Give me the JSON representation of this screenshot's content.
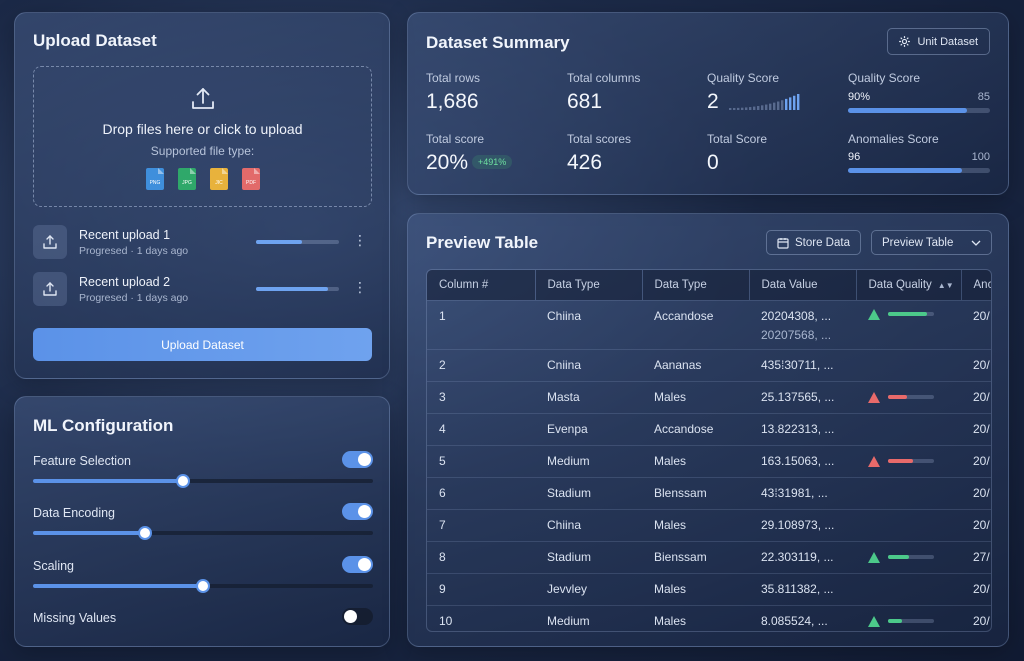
{
  "upload": {
    "title": "Upload Dataset",
    "drop_text": "Drop files here or click to upload",
    "supported_text": "Supported file type:",
    "file_types": [
      {
        "label": "PNG",
        "color": "#3f8fdc"
      },
      {
        "label": "JPG",
        "color": "#2fa86a"
      },
      {
        "label": "JIC",
        "color": "#e8b23c"
      },
      {
        "label": "PDF",
        "color": "#e26a6a"
      }
    ],
    "recent": [
      {
        "title": "Recent upload 1",
        "subtitle": "Progresed · 1 days ago",
        "progress": 0.55
      },
      {
        "title": "Recent upload 2",
        "subtitle": "Progresed · 1 days ago",
        "progress": 0.87
      }
    ],
    "button_label": "Upload Dataset"
  },
  "ml": {
    "title": "ML Configuration",
    "items": [
      {
        "label": "Feature Selection",
        "enabled": true,
        "value": 0.44
      },
      {
        "label": "Data Encoding",
        "enabled": true,
        "value": 0.33
      },
      {
        "label": "Scaling",
        "enabled": true,
        "value": 0.5
      },
      {
        "label": "Missing Values",
        "enabled": false
      }
    ]
  },
  "summary": {
    "title": "Dataset Summary",
    "unit_button": "Unit Dataset",
    "stats": {
      "total_rows": {
        "label": "Total rows",
        "value": "1,686"
      },
      "total_columns": {
        "label": "Total columns",
        "value": "681"
      },
      "quality_score": {
        "label": "Quality Score",
        "value": "2"
      },
      "total_score": {
        "label": "Total score",
        "value": "20%",
        "badge": "+491%"
      },
      "total_scores": {
        "label": "Total scores",
        "value": "426"
      },
      "total_score_2": {
        "label": "Total Score",
        "value": "0"
      }
    },
    "quality_bar": {
      "label": "Quality Score",
      "left": "90%",
      "right": "85",
      "fill": 0.84
    },
    "anomalies_bar": {
      "label": "Anomalies Score",
      "left": "96",
      "right": "100",
      "fill": 0.8
    }
  },
  "preview": {
    "title": "Preview Table",
    "store_button": "Store Data",
    "select_value": "Preview Table",
    "columns": [
      "Column #",
      "Data Type",
      "Data Type",
      "Data Value",
      "Data Quality",
      "Anc"
    ],
    "rows": [
      {
        "num": "1",
        "type1": "Chiina",
        "type2": "Accandose",
        "value": "20204308, ...",
        "value2": "20207568, ...",
        "quality": "good",
        "qfill": 0.85,
        "last": "20/"
      },
      {
        "num": "2",
        "type1": "Cniina",
        "type2": "Aananas",
        "value": "435⁞30711, ...",
        "value2": "",
        "quality": "",
        "qfill": 0,
        "last": "20/"
      },
      {
        "num": "3",
        "type1": "Masta",
        "type2": "Males",
        "value": "25.137565, ...",
        "value2": "",
        "quality": "bad",
        "qfill": 0.42,
        "last": "20/"
      },
      {
        "num": "4",
        "type1": "Evenpa",
        "type2": "Accandose",
        "value": "13.822313, ...",
        "value2": "",
        "quality": "",
        "qfill": 0,
        "last": "20/"
      },
      {
        "num": "5",
        "type1": "Medium",
        "type2": "Males",
        "value": "163.15063, ...",
        "value2": "",
        "quality": "bad",
        "qfill": 0.55,
        "last": "20/"
      },
      {
        "num": "6",
        "type1": "Stadium",
        "type2": "Blenssam",
        "value": "43⁞31981, ...",
        "value2": "",
        "quality": "",
        "qfill": 0,
        "last": "20/"
      },
      {
        "num": "7",
        "type1": "Chiina",
        "type2": "Males",
        "value": "29.108973, ...",
        "value2": "",
        "quality": "",
        "qfill": 0,
        "last": "20/"
      },
      {
        "num": "8",
        "type1": "Stadium",
        "type2": "Bienssam",
        "value": "22.303119, ...",
        "value2": "",
        "quality": "good",
        "qfill": 0.45,
        "last": "27/"
      },
      {
        "num": "9",
        "type1": "Jevvley",
        "type2": "Males",
        "value": "35.811382, ...",
        "value2": "",
        "quality": "",
        "qfill": 0,
        "last": "20/"
      },
      {
        "num": "10",
        "type1": "Medium",
        "type2": "Males",
        "value": "8.085524, ...",
        "value2": "",
        "quality": "good",
        "qfill": 0.3,
        "last": "20/"
      }
    ]
  }
}
